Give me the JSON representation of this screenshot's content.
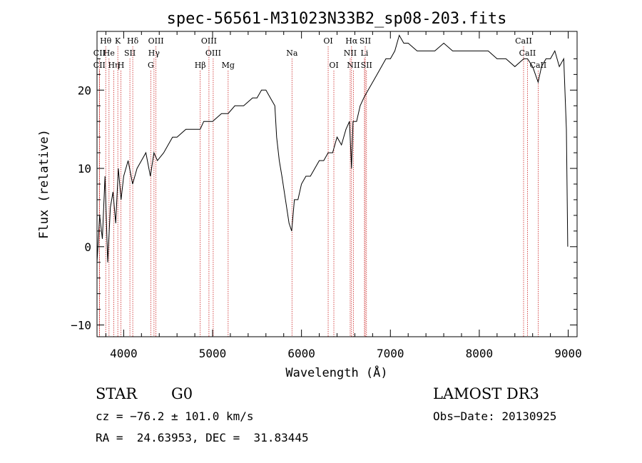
{
  "chart_data": {
    "type": "line",
    "title": "spec-56561-M31023N33B2_sp08-203.fits",
    "xlabel": "Wavelength (Å)",
    "ylabel": "Flux (relative)",
    "xlim": [
      3700,
      9100
    ],
    "ylim": [
      -11.5,
      27.5
    ],
    "xticks": [
      4000,
      5000,
      6000,
      7000,
      8000,
      9000
    ],
    "yticks": [
      -10,
      0,
      10,
      20
    ],
    "grid": false,
    "series": [
      {
        "x": [
          3700,
          3730,
          3760,
          3790,
          3820,
          3850,
          3880,
          3910,
          3940,
          3970,
          4000,
          4050,
          4100,
          4150,
          4200,
          4250,
          4300,
          4340,
          4380,
          4450,
          4500,
          4550,
          4600,
          4700,
          4800,
          4860,
          4900,
          5000,
          5100,
          5175,
          5250,
          5350,
          5450,
          5500,
          5550,
          5600,
          5650,
          5700,
          5720,
          5750,
          5780,
          5820,
          5860,
          5890,
          5920,
          5960,
          6000,
          6050,
          6100,
          6150,
          6200,
          6250,
          6300,
          6350,
          6400,
          6450,
          6500,
          6540,
          6563,
          6580,
          6620,
          6660,
          6700,
          6750,
          6800,
          6850,
          6900,
          6950,
          7000,
          7050,
          7100,
          7150,
          7200,
          7300,
          7400,
          7500,
          7600,
          7700,
          7800,
          7900,
          8000,
          8100,
          8200,
          8300,
          8400,
          8500,
          8542,
          8600,
          8662,
          8700,
          8750,
          8800,
          8850,
          8900,
          8950,
          8980,
          8995
        ],
        "y": [
          -2,
          4,
          1,
          9,
          -2,
          5,
          7,
          3,
          10,
          6,
          9,
          11,
          8,
          10,
          11,
          12,
          9,
          12,
          11,
          12,
          13,
          14,
          14,
          15,
          15,
          15,
          16,
          16,
          17,
          17,
          18,
          18,
          19,
          19,
          20,
          20,
          19,
          18,
          14,
          11,
          9,
          6,
          3,
          2,
          6,
          6,
          8,
          9,
          9,
          10,
          11,
          11,
          12,
          12,
          14,
          13,
          15,
          16,
          10,
          16,
          16,
          18,
          19,
          20,
          21,
          22,
          23,
          24,
          24,
          25,
          27,
          26,
          26,
          25,
          25,
          25,
          26,
          25,
          25,
          25,
          25,
          25,
          24,
          24,
          23,
          24,
          24,
          23,
          21,
          23,
          24,
          24,
          25,
          23,
          24,
          15,
          0
        ]
      }
    ],
    "lines": [
      {
        "label": "Hθ",
        "wavelength": 3798,
        "row": 1
      },
      {
        "label": "CII",
        "wavelength": 3727,
        "row": 2
      },
      {
        "label": "CII",
        "wavelength": 3727,
        "row": 3
      },
      {
        "label": "He",
        "wavelength": 3835,
        "row": 2
      },
      {
        "label": "Hη",
        "wavelength": 3889,
        "row": 3
      },
      {
        "label": "K",
        "wavelength": 3934,
        "row": 1
      },
      {
        "label": "H",
        "wavelength": 3969,
        "row": 3
      },
      {
        "label": "SII",
        "wavelength": 4070,
        "row": 2
      },
      {
        "label": "Hδ",
        "wavelength": 4102,
        "row": 1
      },
      {
        "label": "OIII",
        "wavelength": 4363,
        "row": 1
      },
      {
        "label": "Hγ",
        "wavelength": 4341,
        "row": 2
      },
      {
        "label": "G",
        "wavelength": 4305,
        "row": 3
      },
      {
        "label": "Hβ",
        "wavelength": 4861,
        "row": 3
      },
      {
        "label": "OIII",
        "wavelength": 4959,
        "row": 1
      },
      {
        "label": "OIII",
        "wavelength": 5007,
        "row": 2
      },
      {
        "label": "Mg",
        "wavelength": 5175,
        "row": 3
      },
      {
        "label": "Na",
        "wavelength": 5893,
        "row": 2
      },
      {
        "label": "OI",
        "wavelength": 6300,
        "row": 1
      },
      {
        "label": "OI",
        "wavelength": 6364,
        "row": 3
      },
      {
        "label": "Hα",
        "wavelength": 6563,
        "row": 1
      },
      {
        "label": "NII",
        "wavelength": 6548,
        "row": 2
      },
      {
        "label": "NII",
        "wavelength": 6584,
        "row": 3
      },
      {
        "label": "SII",
        "wavelength": 6717,
        "row": 1
      },
      {
        "label": "Li",
        "wavelength": 6708,
        "row": 2
      },
      {
        "label": "SII",
        "wavelength": 6731,
        "row": 3
      },
      {
        "label": "CaII",
        "wavelength": 8498,
        "row": 1
      },
      {
        "label": "CaII",
        "wavelength": 8542,
        "row": 2
      },
      {
        "label": "CaII",
        "wavelength": 8662,
        "row": 3
      }
    ]
  },
  "info": {
    "class_label": "STAR",
    "subclass": "G0",
    "survey": "LAMOST DR3",
    "cz": "cz = −76.2 ± 101.0 km/s",
    "obs_date": "Obs−Date: 20130925",
    "coords": "RA =  24.63953, DEC =  31.83445"
  },
  "colors": {
    "line_marker": "#cc2222",
    "spectrum": "#000000"
  }
}
